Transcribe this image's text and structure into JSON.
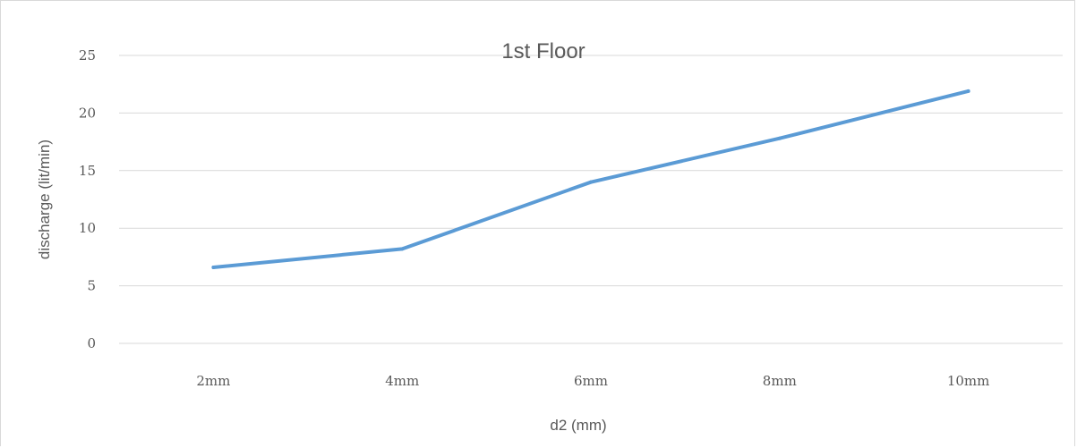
{
  "chart_data": {
    "type": "line",
    "title": "1st Floor",
    "xlabel": "d2 (mm)",
    "ylabel": "discharge (lit/min)",
    "categories": [
      "2mm",
      "4mm",
      "6mm",
      "8mm",
      "10mm"
    ],
    "series": [
      {
        "values": [
          6.6,
          8.2,
          14.0,
          17.8,
          21.9
        ]
      }
    ],
    "ylim": [
      0,
      25
    ],
    "yticks": [
      "0",
      "5",
      "10",
      "15",
      "20",
      "25"
    ],
    "grid": true,
    "legend": "none",
    "colors": {
      "line": "#5b9bd5",
      "grid": "#d9d9d9",
      "text": "#595959"
    }
  }
}
